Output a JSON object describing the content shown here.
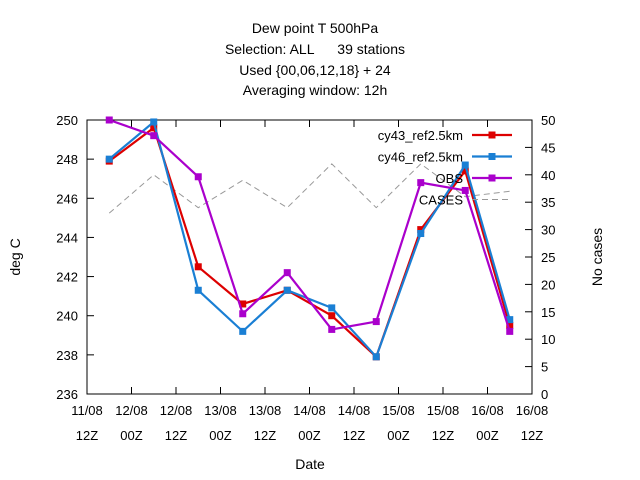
{
  "chart_data": {
    "type": "line",
    "title_lines": [
      "Dew point T 500hPa",
      "Selection: ALL      39 stations",
      "Used {00,06,12,18} + 24",
      "Averaging window: 12h"
    ],
    "xlabel": "Date",
    "ylabel": "deg C",
    "y2label": "No cases",
    "x_ticks": [
      {
        "l1": "11/08",
        "l2": "12Z"
      },
      {
        "l1": "12/08",
        "l2": "00Z"
      },
      {
        "l1": "12/08",
        "l2": "12Z"
      },
      {
        "l1": "13/08",
        "l2": "00Z"
      },
      {
        "l1": "13/08",
        "l2": "12Z"
      },
      {
        "l1": "14/08",
        "l2": "00Z"
      },
      {
        "l1": "14/08",
        "l2": "12Z"
      },
      {
        "l1": "15/08",
        "l2": "00Z"
      },
      {
        "l1": "15/08",
        "l2": "12Z"
      },
      {
        "l1": "16/08",
        "l2": "00Z"
      },
      {
        "l1": "16/08",
        "l2": "12Z"
      }
    ],
    "x_hours": [
      6,
      18,
      30,
      42,
      54,
      66,
      78,
      90,
      102,
      114
    ],
    "xlim_hours": [
      0,
      120
    ],
    "ylim": [
      236,
      250
    ],
    "y_ticks": [
      236,
      238,
      240,
      242,
      244,
      246,
      248,
      250
    ],
    "y2lim": [
      0,
      50
    ],
    "y2_ticks": [
      0,
      5,
      10,
      15,
      20,
      25,
      30,
      35,
      40,
      45,
      50
    ],
    "legend_position": "top-right",
    "series": [
      {
        "name": "cy43_ref2.5km",
        "axis": "y",
        "color": "#dd0000",
        "marker": "square",
        "values": [
          247.9,
          249.6,
          242.5,
          240.6,
          241.3,
          240.0,
          237.9,
          244.4,
          247.4,
          239.5
        ]
      },
      {
        "name": "cy46_ref2.5km",
        "axis": "y",
        "color": "#1a7fd4",
        "marker": "square",
        "values": [
          248.0,
          249.9,
          241.3,
          239.2,
          241.3,
          240.4,
          237.9,
          244.2,
          247.7,
          239.8
        ]
      },
      {
        "name": "OBS",
        "axis": "y",
        "color": "#aa00cc",
        "marker": "square",
        "values": [
          250.0,
          249.2,
          247.1,
          240.1,
          242.2,
          239.3,
          239.7,
          246.8,
          246.4,
          239.2
        ]
      },
      {
        "name": "CASES",
        "axis": "y2",
        "color": "#999999",
        "marker": "none",
        "dashed": true,
        "values": [
          33,
          40,
          34,
          39,
          34,
          42,
          34,
          42,
          36,
          37
        ]
      }
    ]
  }
}
